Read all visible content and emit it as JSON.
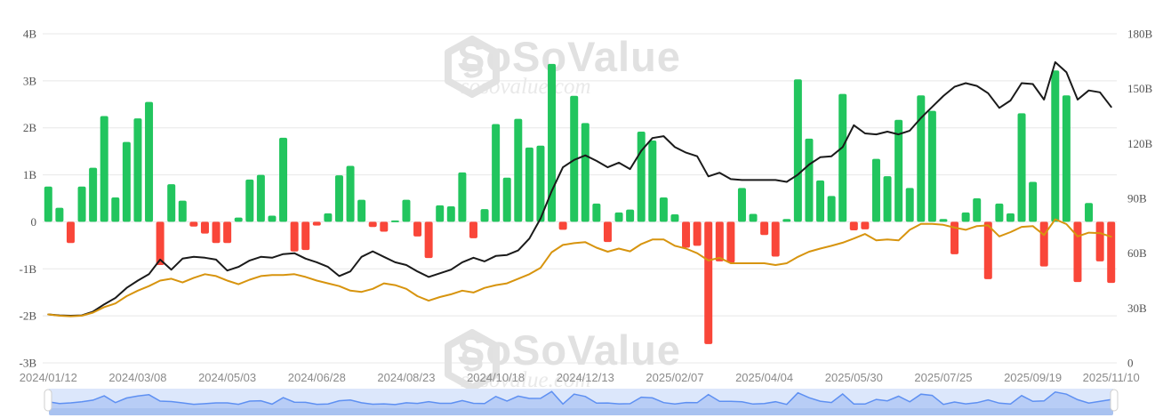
{
  "watermark": {
    "brand": "SoSoValue",
    "domain": "sosovalue.com"
  },
  "colors": {
    "bar_positive": "#22c55e",
    "bar_negative": "#f94639",
    "line_black": "#1a1a1a",
    "line_orange": "#d7940e",
    "gridline": "#e8e8e8",
    "y_axis_label": "#545454",
    "x_axis_label": "#8a8a8a",
    "watermark_gray": "#e2e2e2",
    "nav_background": "#dce7fb",
    "nav_area_fill": "#b8cdf6",
    "nav_line": "#5e90f2",
    "nav_scrollbar": "#a9c2f0",
    "nav_handle_fill": "#ffffff",
    "nav_handle_border": "#cfcfcf"
  },
  "chart_data": {
    "type": "bar",
    "title": "",
    "xlabel": "",
    "ylabel": "",
    "grid": true,
    "legend_position": "none",
    "left_axis": {
      "unit": "B",
      "min": -3,
      "max": 4,
      "ticks": [
        "4B",
        "3B",
        "2B",
        "1B",
        "0",
        "-1B",
        "-2B",
        "-3B"
      ]
    },
    "right_axis": {
      "unit": "B",
      "min": 0,
      "max": 180,
      "ticks": [
        "180B",
        "150B",
        "120B",
        "90B",
        "60B",
        "30B",
        "0"
      ]
    },
    "x_tick_labels": [
      "2024/01/12",
      "2024/03/08",
      "2024/05/03",
      "2024/06/28",
      "2024/08/23",
      "2024/10/18",
      "2024/12/13",
      "2025/02/07",
      "2025/04/04",
      "2025/05/30",
      "2025/07/25",
      "2025/09/19",
      "2025/11/10"
    ],
    "x_tick_slots": [
      0,
      8,
      16,
      24,
      32,
      40,
      48,
      56,
      64,
      72,
      80,
      88,
      95
    ],
    "bars": {
      "name": "weekly-net-flow",
      "axis": "left",
      "values": [
        0.75,
        0.3,
        -0.45,
        0.75,
        1.15,
        2.25,
        0.52,
        1.7,
        2.2,
        2.55,
        -0.92,
        0.8,
        0.45,
        -0.1,
        -0.25,
        -0.45,
        -0.45,
        0.09,
        0.9,
        1.0,
        0.13,
        1.79,
        -0.63,
        -0.6,
        -0.08,
        0.18,
        0.99,
        1.19,
        0.47,
        -0.11,
        -0.21,
        0.03,
        0.47,
        -0.31,
        -0.77,
        0.35,
        0.33,
        1.05,
        -0.35,
        0.27,
        2.08,
        0.94,
        2.19,
        1.58,
        1.62,
        3.36,
        -0.17,
        2.68,
        2.1,
        0.39,
        -0.43,
        0.2,
        0.26,
        1.92,
        1.73,
        0.52,
        0.16,
        -0.55,
        -0.51,
        -2.6,
        -0.84,
        -0.87,
        0.72,
        0.17,
        -0.28,
        -0.74,
        0.06,
        3.03,
        1.77,
        0.88,
        0.55,
        2.72,
        -0.18,
        -0.16,
        1.34,
        0.97,
        2.17,
        0.72,
        2.69,
        2.36,
        0.06,
        -0.69,
        0.2,
        0.5,
        -1.22,
        0.39,
        0.18,
        2.31,
        0.85,
        -0.95,
        3.22,
        2.69,
        -1.28,
        0.4,
        -0.84,
        -1.3
      ]
    },
    "series": [
      {
        "name": "black-line",
        "axis": "right",
        "color": "#1a1a1a",
        "values": [
          26.5,
          26.0,
          25.8,
          26.0,
          28.0,
          32.0,
          35.5,
          41.0,
          45.0,
          48.5,
          56.5,
          51.0,
          57.0,
          58.0,
          57.5,
          56.5,
          50.5,
          52.5,
          56.0,
          58.0,
          57.5,
          59.5,
          60.0,
          57.0,
          55.0,
          52.5,
          47.5,
          50.0,
          58.0,
          61.0,
          58.0,
          55.0,
          53.5,
          50.0,
          47.0,
          49.0,
          51.0,
          55.0,
          57.5,
          55.5,
          58.5,
          59.0,
          61.5,
          68.0,
          79.0,
          94.0,
          107.0,
          111.0,
          113.5,
          110.5,
          107.0,
          109.5,
          106.0,
          116.0,
          123.0,
          124.0,
          118.0,
          115.0,
          113.0,
          102.0,
          104.0,
          100.5,
          100.0,
          100.0,
          100.0,
          100.0,
          99.0,
          103.0,
          108.5,
          112.5,
          113.0,
          118.0,
          130.0,
          125.5,
          125.0,
          126.5,
          125.0,
          127.0,
          134.0,
          140.0,
          146.0,
          151.0,
          153.0,
          151.5,
          147.5,
          139.5,
          143.5,
          153.0,
          152.5,
          144.0,
          164.5,
          159.0,
          144.0,
          149.0,
          148.0,
          140.0
        ]
      },
      {
        "name": "orange-line",
        "axis": "right",
        "color": "#d7940e",
        "values": [
          26.5,
          25.8,
          25.5,
          25.8,
          27.5,
          30.5,
          32.5,
          36.5,
          39.5,
          42.0,
          45.0,
          46.0,
          44.0,
          46.5,
          48.5,
          47.5,
          45.0,
          43.0,
          45.5,
          47.5,
          48.0,
          48.0,
          48.5,
          47.0,
          45.0,
          43.5,
          42.0,
          39.5,
          38.8,
          40.5,
          43.5,
          42.5,
          40.5,
          36.5,
          34.0,
          36.0,
          37.5,
          39.5,
          38.5,
          41.0,
          42.5,
          43.5,
          46.0,
          48.5,
          52.0,
          60.5,
          64.5,
          65.5,
          66.0,
          63.0,
          60.8,
          62.5,
          61.0,
          65.0,
          67.5,
          67.5,
          64.0,
          62.5,
          60.0,
          56.0,
          57.5,
          54.5,
          54.5,
          54.5,
          54.5,
          53.5,
          54.5,
          58.0,
          60.8,
          62.5,
          64.0,
          65.7,
          68.0,
          70.5,
          67.0,
          67.5,
          67.0,
          72.8,
          76.0,
          76.0,
          75.5,
          74.0,
          72.8,
          74.8,
          75.2,
          69.2,
          71.5,
          74.4,
          74.8,
          69.9,
          78.5,
          75.9,
          69.2,
          71.2,
          71.0,
          69.0
        ]
      }
    ]
  }
}
